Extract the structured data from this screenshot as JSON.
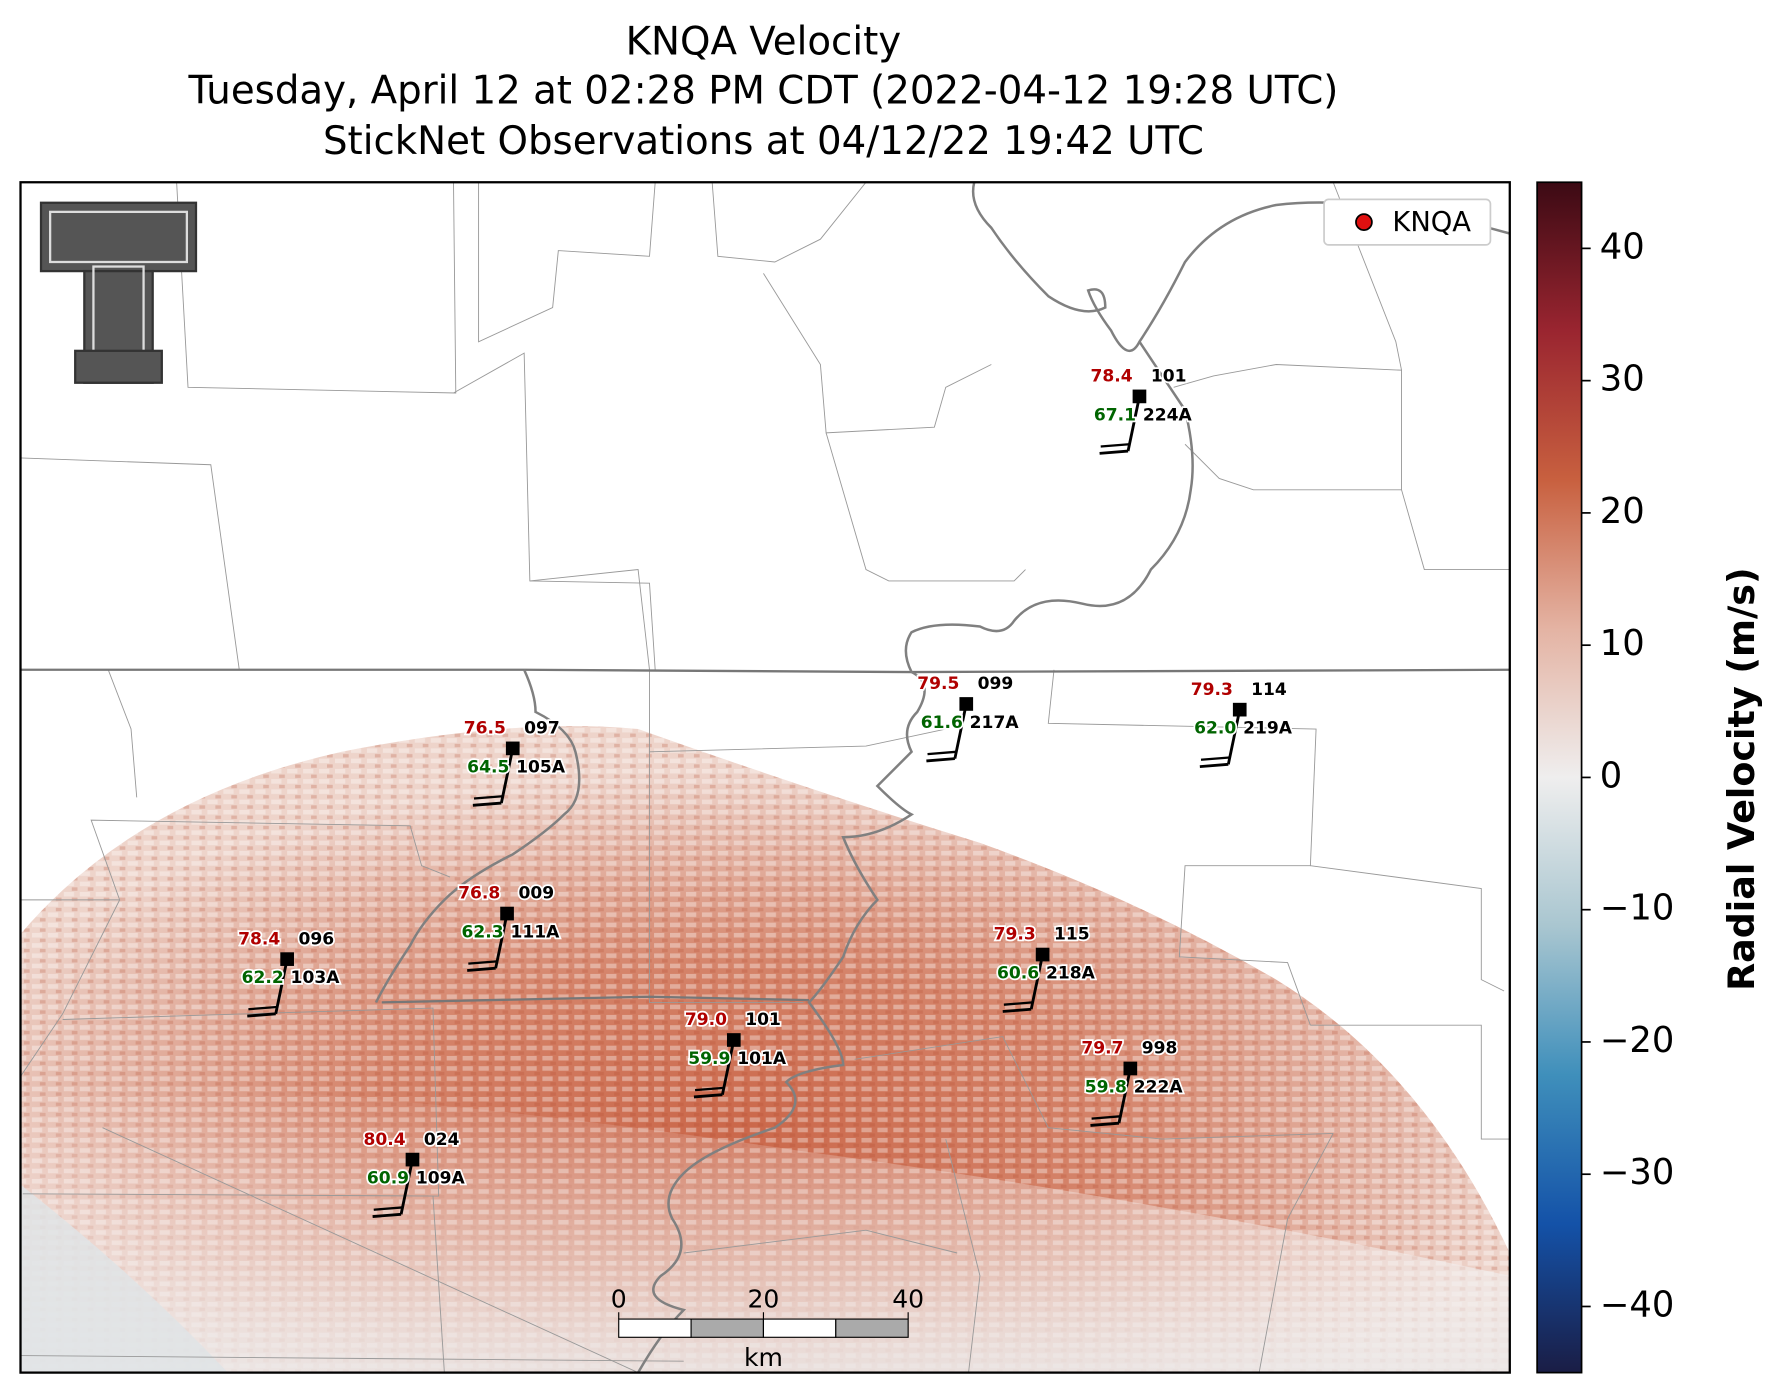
{
  "map": {
    "title": [
      "KNQA Velocity",
      "Tuesday, April 12 at 02:28 PM CDT (2022-04-12 19:28 UTC)",
      "StickNet Observations at 04/12/22 19:42 UTC"
    ],
    "legend": "KNQA",
    "colorbar": {
      "label": "Radial Velocity (m/s)",
      "lim": [
        -45,
        45
      ],
      "ticks": [
        {
          "value": -40,
          "label": "−40"
        },
        {
          "value": -30,
          "label": "−30"
        },
        {
          "value": -20,
          "label": "−20"
        },
        {
          "value": -10,
          "label": "−10"
        },
        0,
        10,
        20,
        30,
        40
      ],
      "colors": [
        "#1a1d45",
        "#1452a8",
        "#3f8fbb",
        "#a9c6d0",
        "#efeeee",
        "#e4b3a3",
        "#c8603f",
        "#9a2530",
        "#3c0a14"
      ]
    },
    "scale_bar": {
      "lim": [
        0,
        40
      ],
      "ticks": [
        0,
        20,
        40
      ],
      "unit": "km"
    },
    "stations": [
      {
        "id": "224A",
        "temp": "78.4",
        "dewpoint": "67.1",
        "pressure": "101"
      },
      {
        "id": "217A",
        "temp": "79.5",
        "dewpoint": "61.6",
        "pressure": "099"
      },
      {
        "id": "219A",
        "temp": "79.3",
        "dewpoint": "62.0",
        "pressure": "114"
      },
      {
        "id": "105A",
        "temp": "76.5",
        "dewpoint": "64.5",
        "pressure": "097"
      },
      {
        "id": "111A",
        "temp": "76.8",
        "dewpoint": "62.3",
        "pressure": "009"
      },
      {
        "id": "103A",
        "temp": "78.4",
        "dewpoint": "62.2",
        "pressure": "096"
      },
      {
        "id": "218A",
        "temp": "79.3",
        "dewpoint": "60.6",
        "pressure": "115"
      },
      {
        "id": "101A",
        "temp": "79.0",
        "dewpoint": "59.9",
        "pressure": "101"
      },
      {
        "id": "222A",
        "temp": "79.7",
        "dewpoint": "59.8",
        "pressure": "998"
      },
      {
        "id": "109A",
        "temp": "80.4",
        "dewpoint": "60.9",
        "pressure": "024"
      }
    ]
  }
}
